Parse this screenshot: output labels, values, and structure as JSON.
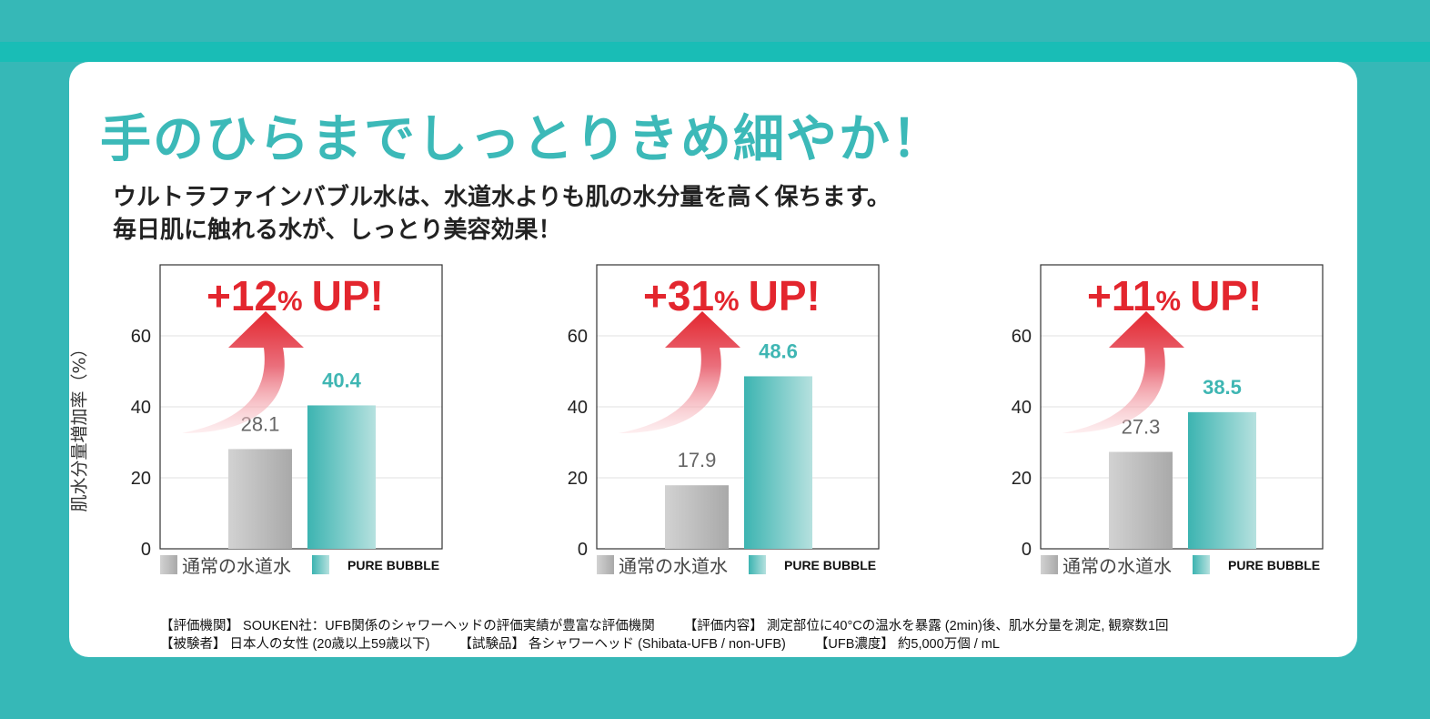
{
  "headline": "手のひらまでしっとりきめ細やか！",
  "subtext": {
    "line1": "ウルトラファインバブル水は、水道水よりも肌の水分量を高く保ちます。",
    "line2": "毎日肌に触れる水が、しっとり美容効果！"
  },
  "y_axis_label": "肌水分量増加率（%）",
  "colors": {
    "accent": "#3cb9b8",
    "up_red": "#e3262e",
    "tap_gray": "#b9b9b9",
    "pure_teal": "#3fb6b3"
  },
  "chart_data": [
    {
      "type": "bar",
      "categories": [
        "通常の水道水",
        "PURE BUBBLE"
      ],
      "values": [
        28.1,
        40.4
      ],
      "ylim": [
        0,
        80
      ],
      "yticks": [
        0,
        20,
        40,
        60
      ],
      "annotation": "+12",
      "annotation_unit": "%",
      "annotation_suffix": "UP!",
      "legend": [
        "通常の水道水",
        "PURE BUBBLE"
      ],
      "legend_position": "bottom"
    },
    {
      "type": "bar",
      "categories": [
        "通常の水道水",
        "PURE BUBBLE"
      ],
      "values": [
        17.9,
        48.6
      ],
      "ylim": [
        0,
        80
      ],
      "yticks": [
        0,
        20,
        40,
        60
      ],
      "annotation": "+31",
      "annotation_unit": "%",
      "annotation_suffix": "UP!",
      "legend": [
        "通常の水道水",
        "PURE BUBBLE"
      ],
      "legend_position": "bottom"
    },
    {
      "type": "bar",
      "categories": [
        "通常の水道水",
        "PURE BUBBLE"
      ],
      "values": [
        27.3,
        38.5
      ],
      "ylim": [
        0,
        80
      ],
      "yticks": [
        0,
        20,
        40,
        60
      ],
      "annotation": "+11",
      "annotation_unit": "%",
      "annotation_suffix": "UP!",
      "legend": [
        "通常の水道水",
        "PURE BUBBLE"
      ],
      "legend_position": "bottom"
    }
  ],
  "notes": {
    "line1": [
      "【評価機関】 SOUKEN社：UFB関係のシャワーヘッドの評価実績が豊富な評価機関",
      "【評価内容】 測定部位に40°Cの温水を暴露 (2min)後、肌水分量を測定, 観察数1回"
    ],
    "line2": [
      "【被験者】 日本人の女性 (20歳以上59歳以下)",
      "【試験品】 各シャワーヘッド (Shibata-UFB / non-UFB)",
      "【UFB濃度】 約5,000万個 / mL"
    ]
  }
}
